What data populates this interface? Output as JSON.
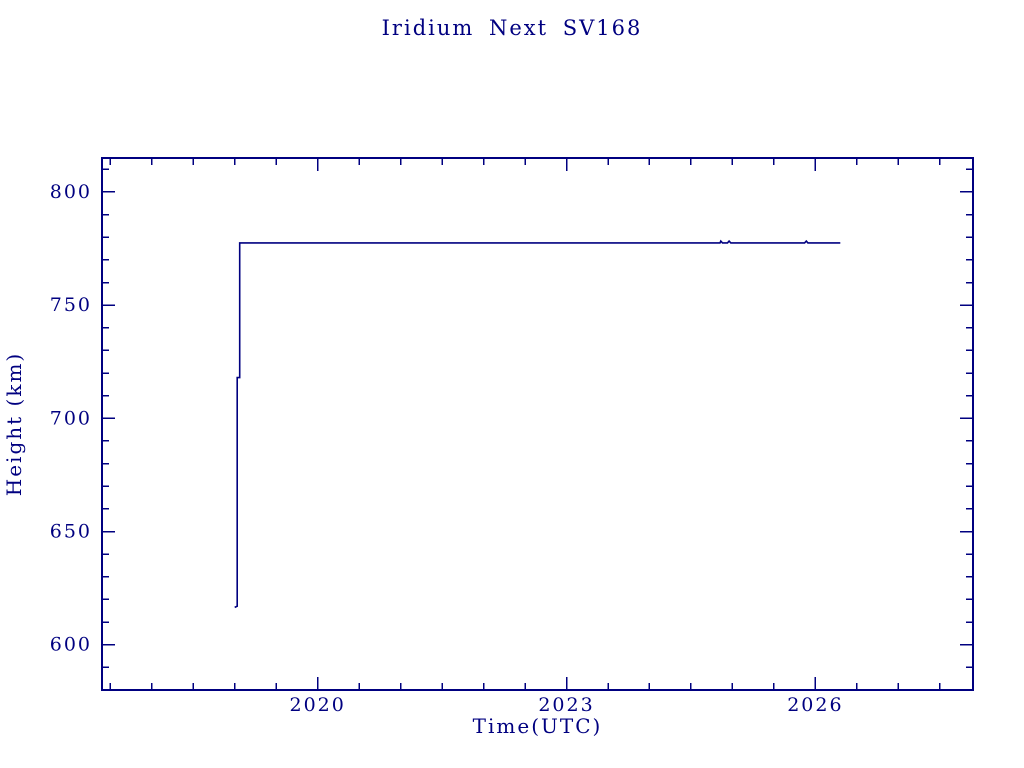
{
  "figure": {
    "background": "#ffffff",
    "accent_color": "#000080"
  },
  "chart_data": {
    "type": "line",
    "title": "Iridium Next SV168",
    "xlabel": "Time(UTC)",
    "ylabel": "Height (km)",
    "xlim": [
      2017.4,
      2027.9
    ],
    "ylim": [
      580,
      815
    ],
    "xticks": [
      2020,
      2023,
      2026
    ],
    "xtick_labels": [
      "2020",
      "2023",
      "2026"
    ],
    "x_minor_interval": 0.5,
    "yticks": [
      600,
      650,
      700,
      750,
      800
    ],
    "ytick_labels": [
      "600",
      "650",
      "700",
      "750",
      "800"
    ],
    "y_minor_interval": 10,
    "grid": false,
    "legend": "none",
    "line_color": "#000080",
    "series": [
      {
        "name": "height",
        "points": [
          [
            2019.0,
            616.5
          ],
          [
            2019.03,
            617.0
          ],
          [
            2019.03,
            718.0
          ],
          [
            2019.06,
            718.0
          ],
          [
            2019.06,
            777.5
          ],
          [
            2024.85,
            777.5
          ],
          [
            2024.86,
            778.3
          ],
          [
            2024.88,
            777.5
          ],
          [
            2024.94,
            777.5
          ],
          [
            2024.96,
            778.3
          ],
          [
            2024.98,
            777.5
          ],
          [
            2025.87,
            777.5
          ],
          [
            2025.89,
            778.3
          ],
          [
            2025.91,
            777.5
          ],
          [
            2026.3,
            777.5
          ]
        ]
      }
    ]
  }
}
